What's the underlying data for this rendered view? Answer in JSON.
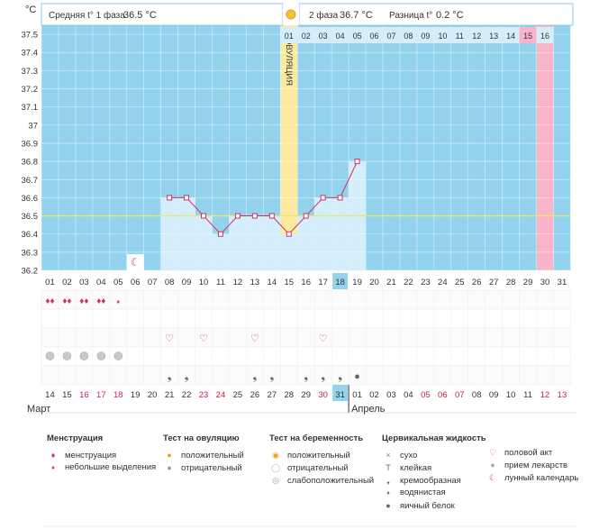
{
  "header": {
    "phase1_label": "Средняя t° 1 фаза",
    "phase1_value": "36.5 °C",
    "phase2_label": "2 фаза",
    "phase2_value": "36.7 °C",
    "diff_label": "Разница t°",
    "diff_value": "0.2 °C"
  },
  "unit_label": "°C",
  "ovulation_label": "ОВУЛЯЦИЯ",
  "colors": {
    "plot_bg": "#93d3ee",
    "bar_fill": "#d4eefb",
    "line": "#d0306a",
    "marker": "#d0306a",
    "ovulation_band": "#fbeaa0",
    "period_band": "#f8b4c8",
    "avg_line": "#e8e86a",
    "today_highlight": "#93d3ee",
    "red_date": "#cc2244"
  },
  "chart_data": {
    "type": "line",
    "cycle_days": [
      "01",
      "02",
      "03",
      "04",
      "05",
      "06",
      "07",
      "08",
      "09",
      "10",
      "11",
      "12",
      "13",
      "14",
      "15",
      "16",
      "17",
      "18",
      "19",
      "20",
      "21",
      "22",
      "23",
      "24",
      "25",
      "26",
      "27",
      "28",
      "29",
      "30",
      "31"
    ],
    "temperature": [
      null,
      null,
      null,
      null,
      null,
      null,
      null,
      36.6,
      36.6,
      36.5,
      36.4,
      36.5,
      36.5,
      36.5,
      36.4,
      36.5,
      36.6,
      36.6,
      36.8,
      null,
      null,
      null,
      null,
      null,
      null,
      null,
      null,
      null,
      null,
      null,
      null
    ],
    "yticks": [
      "36.2",
      "36.3",
      "36.4",
      "36.5",
      "36.6",
      "36.7",
      "36.8",
      "36.9",
      "37",
      "37.1",
      "37.2",
      "37.3",
      "37.4",
      "37.5"
    ],
    "ylim": [
      36.2,
      37.55
    ],
    "ylabel": "°C",
    "average_line_value": 36.5,
    "ovulation_day": 15,
    "period_start_day": 30,
    "today_day": 18,
    "second_phase_days": [
      "01",
      "02",
      "03",
      "04",
      "05",
      "06",
      "07",
      "08",
      "09",
      "10",
      "11",
      "12",
      "13",
      "14",
      "15",
      "16"
    ],
    "second_phase_highlight": "15",
    "calendar_dates": [
      "14",
      "15",
      "16",
      "17",
      "18",
      "19",
      "20",
      "21",
      "22",
      "23",
      "24",
      "25",
      "26",
      "27",
      "28",
      "29",
      "30",
      "31",
      "01",
      "02",
      "03",
      "04",
      "05",
      "06",
      "07",
      "08",
      "09",
      "10",
      "11",
      "12",
      "13"
    ],
    "calendar_red_dates": [
      "16",
      "17",
      "18",
      "23",
      "24",
      "30",
      "05",
      "06",
      "07",
      "12",
      "13"
    ],
    "calendar_today": "31",
    "month_labels": [
      "Март",
      "Апрель"
    ],
    "grid": true
  },
  "rows": {
    "menstruation": [
      "big",
      "big",
      "big",
      "big",
      "small"
    ],
    "intercourse_days": [
      8,
      10,
      13,
      17
    ],
    "medication_days": [
      1,
      2,
      3,
      4,
      5
    ],
    "cervical_days": [
      8,
      9,
      13,
      14,
      16,
      17,
      18,
      19
    ],
    "moon_day": 6
  },
  "legend": {
    "menstruation": {
      "title": "Менструация",
      "items": [
        "менструация",
        "небольшие выделения"
      ]
    },
    "ovulation_test": {
      "title": "Тест на овуляцию",
      "items": [
        "положительный",
        "отрицательный"
      ]
    },
    "pregnancy_test": {
      "title": "Тест на беременность",
      "items": [
        "положительный",
        "отрицательный",
        "слабоположительный"
      ]
    },
    "cervical": {
      "title": "Цервикальная жидкость",
      "items": [
        "сухо",
        "клейкая",
        "кремообразная",
        "водянистая",
        "яичный белок"
      ]
    },
    "other": {
      "items": [
        "половой акт",
        "прием лекарств",
        "лунный календарь"
      ]
    }
  }
}
